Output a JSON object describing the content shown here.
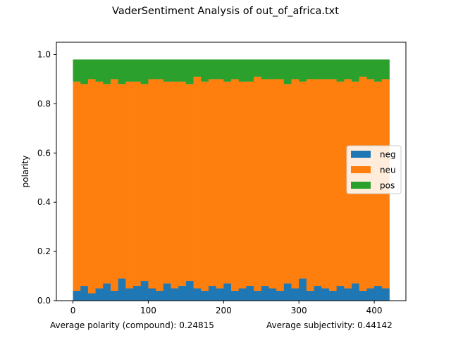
{
  "figure": {
    "title": "VaderSentiment Analysis of out_of_africa.txt",
    "footer_left": "Average polarity (compound): 0.24815",
    "footer_right": "Average subjectivity: 0.44142"
  },
  "colors": {
    "neg": "#1f77b4",
    "neu": "#ff7f0e",
    "pos": "#2ca02c"
  },
  "chart_data": {
    "type": "bar",
    "stacked": true,
    "title": "VaderSentiment Analysis of out_of_africa.txt",
    "xlabel": "",
    "ylabel": "polarity",
    "xlim": [
      -22,
      442
    ],
    "ylim": [
      0,
      1.05
    ],
    "xticks": [
      0,
      100,
      200,
      300,
      400
    ],
    "yticks": [
      0.0,
      0.2,
      0.4,
      0.6,
      0.8,
      1.0
    ],
    "xtick_labels": [
      "0",
      "100",
      "200",
      "300",
      "400"
    ],
    "ytick_labels": [
      "0.0",
      "0.2",
      "0.4",
      "0.6",
      "0.8",
      "1.0"
    ],
    "n_points": 420,
    "legend_position": "center-right",
    "grid": false,
    "series": [
      {
        "name": "neg",
        "sampled_every": 10,
        "x": [
          0,
          10,
          20,
          30,
          40,
          50,
          60,
          70,
          80,
          90,
          100,
          110,
          120,
          130,
          140,
          150,
          160,
          170,
          180,
          190,
          200,
          210,
          220,
          230,
          240,
          250,
          260,
          270,
          280,
          290,
          300,
          310,
          320,
          330,
          340,
          350,
          360,
          370,
          380,
          390,
          400,
          410
        ],
        "values": [
          0.04,
          0.06,
          0.03,
          0.05,
          0.07,
          0.04,
          0.09,
          0.05,
          0.06,
          0.08,
          0.05,
          0.04,
          0.07,
          0.05,
          0.06,
          0.08,
          0.05,
          0.04,
          0.06,
          0.05,
          0.07,
          0.04,
          0.05,
          0.06,
          0.04,
          0.06,
          0.05,
          0.04,
          0.07,
          0.05,
          0.09,
          0.04,
          0.06,
          0.05,
          0.04,
          0.06,
          0.05,
          0.07,
          0.04,
          0.05,
          0.06,
          0.05
        ]
      },
      {
        "name": "neu",
        "sampled_every": 10,
        "x": [
          0,
          10,
          20,
          30,
          40,
          50,
          60,
          70,
          80,
          90,
          100,
          110,
          120,
          130,
          140,
          150,
          160,
          170,
          180,
          190,
          200,
          210,
          220,
          230,
          240,
          250,
          260,
          270,
          280,
          290,
          300,
          310,
          320,
          330,
          340,
          350,
          360,
          370,
          380,
          390,
          400,
          410
        ],
        "values": [
          0.85,
          0.82,
          0.87,
          0.84,
          0.81,
          0.86,
          0.79,
          0.84,
          0.83,
          0.8,
          0.85,
          0.86,
          0.82,
          0.84,
          0.83,
          0.8,
          0.86,
          0.85,
          0.84,
          0.85,
          0.82,
          0.86,
          0.84,
          0.83,
          0.87,
          0.84,
          0.85,
          0.86,
          0.81,
          0.85,
          0.8,
          0.86,
          0.84,
          0.85,
          0.86,
          0.83,
          0.85,
          0.82,
          0.87,
          0.85,
          0.83,
          0.85
        ]
      },
      {
        "name": "pos",
        "sampled_every": 10,
        "x": [
          0,
          10,
          20,
          30,
          40,
          50,
          60,
          70,
          80,
          90,
          100,
          110,
          120,
          130,
          140,
          150,
          160,
          170,
          180,
          190,
          200,
          210,
          220,
          230,
          240,
          250,
          260,
          270,
          280,
          290,
          300,
          310,
          320,
          330,
          340,
          350,
          360,
          370,
          380,
          390,
          400,
          410
        ],
        "values": [
          0.09,
          0.1,
          0.08,
          0.09,
          0.1,
          0.08,
          0.1,
          0.09,
          0.09,
          0.1,
          0.08,
          0.08,
          0.09,
          0.09,
          0.09,
          0.1,
          0.07,
          0.09,
          0.08,
          0.08,
          0.09,
          0.08,
          0.09,
          0.09,
          0.07,
          0.08,
          0.08,
          0.08,
          0.1,
          0.08,
          0.09,
          0.08,
          0.08,
          0.08,
          0.08,
          0.09,
          0.08,
          0.09,
          0.07,
          0.08,
          0.09,
          0.08
        ]
      }
    ]
  }
}
